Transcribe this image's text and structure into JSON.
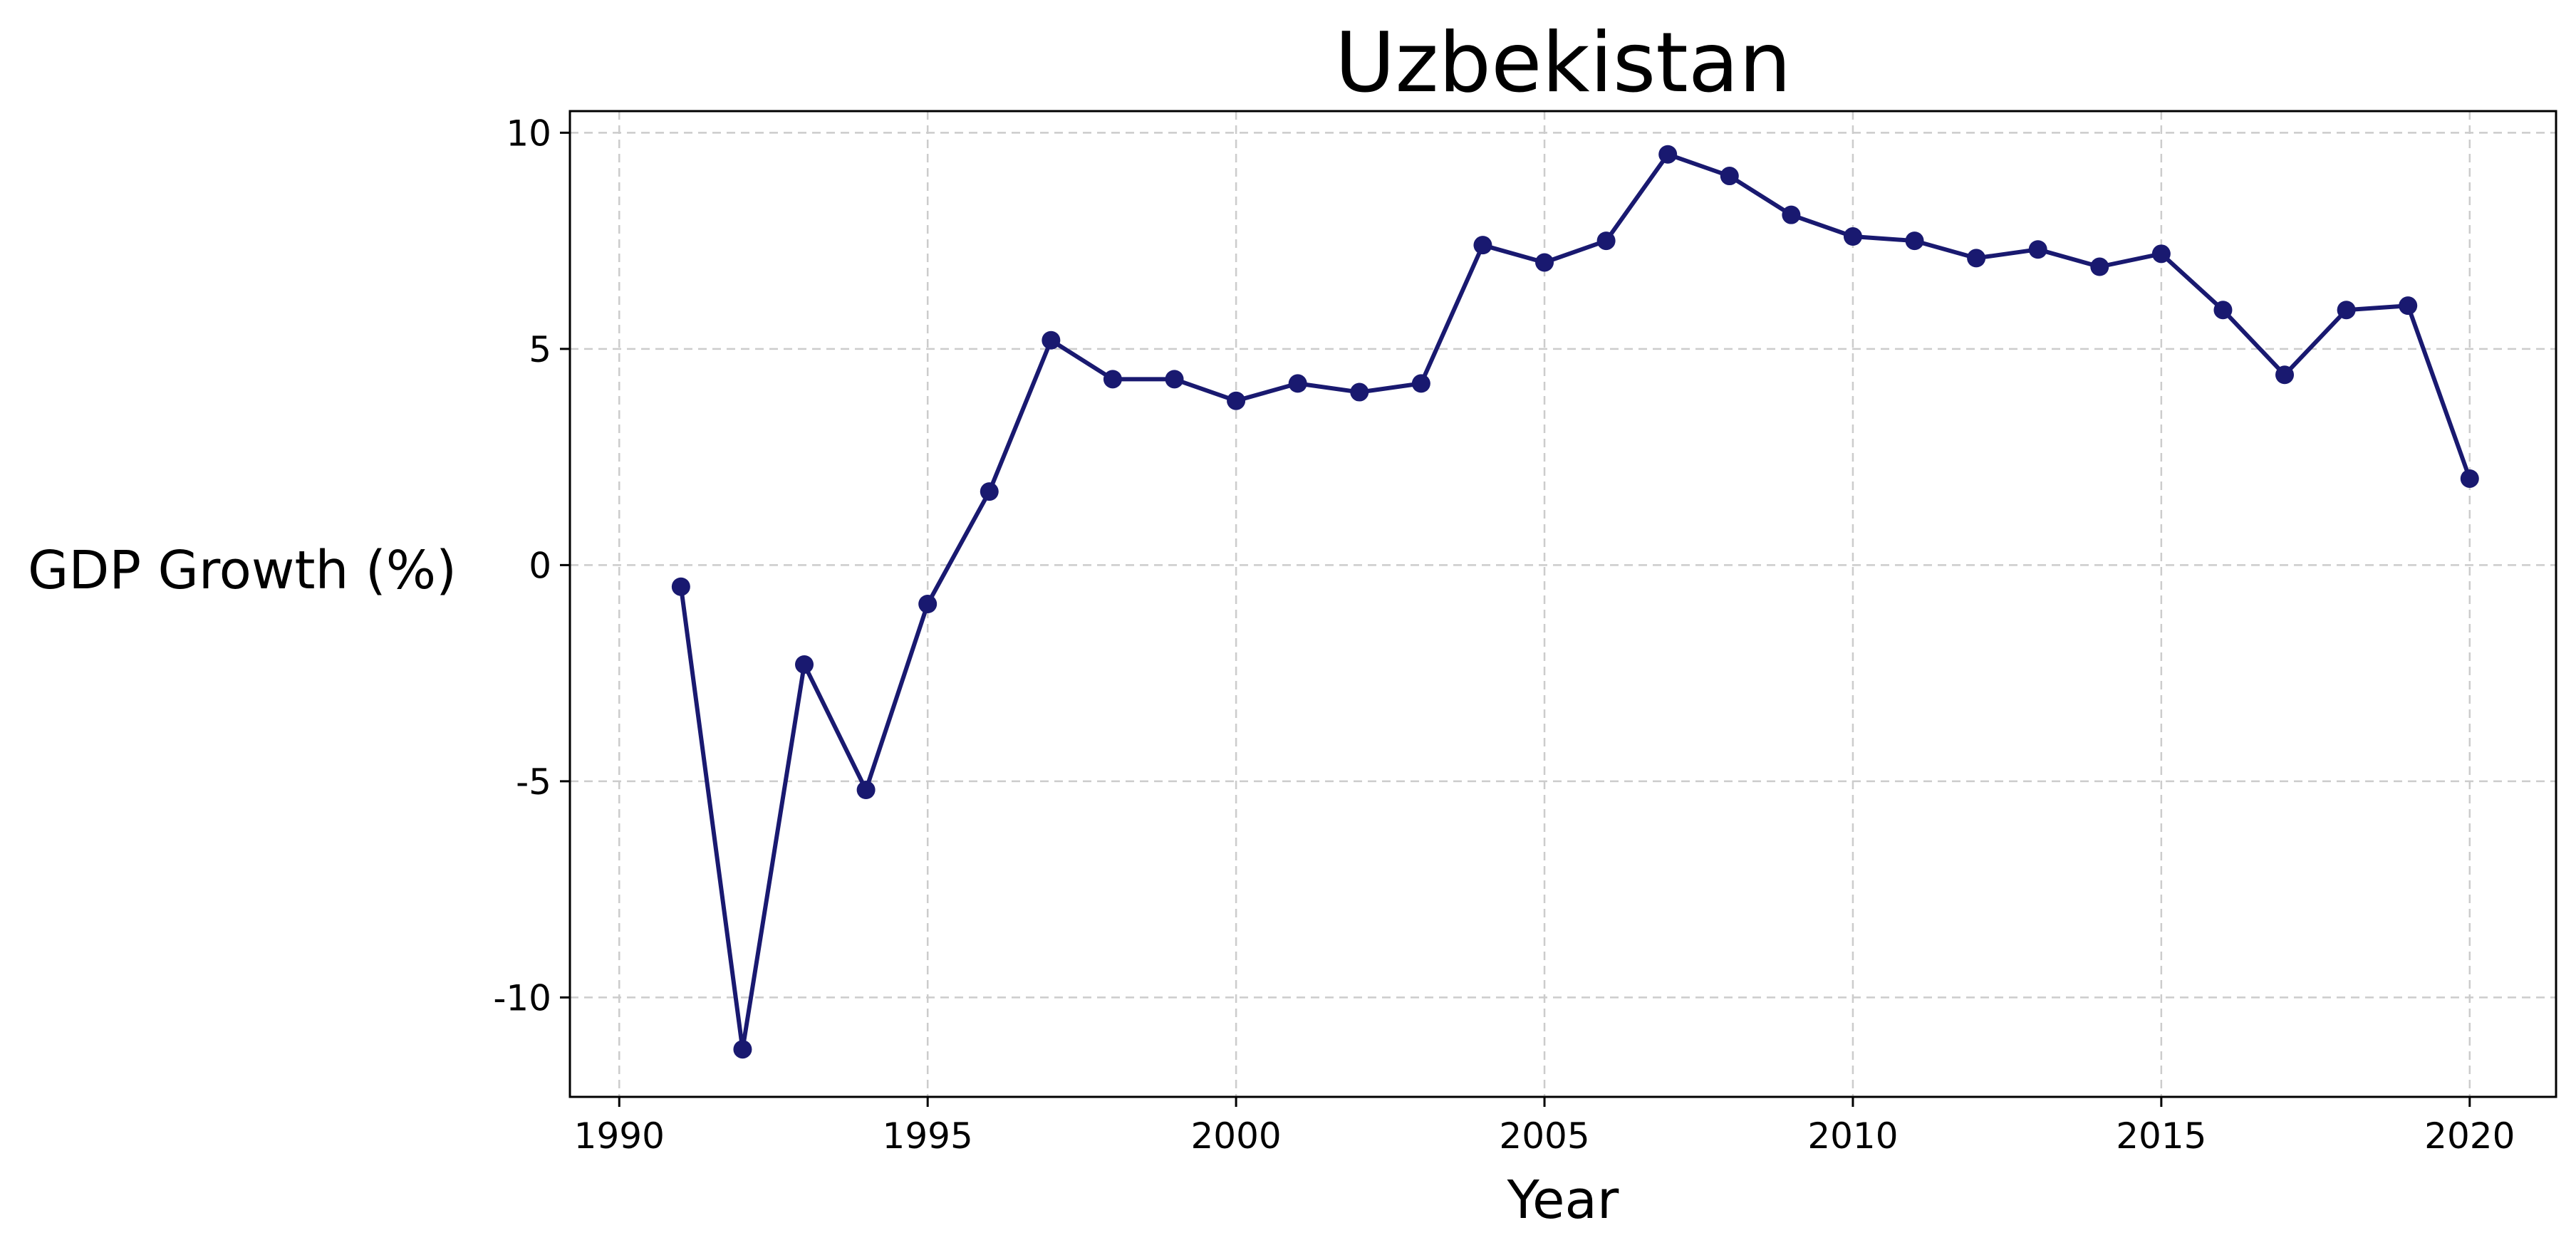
{
  "chart_data": {
    "type": "line",
    "title": "Uzbekistan",
    "xlabel": "Year",
    "ylabel": "GDP Growth (%)",
    "xlim": [
      1989.2,
      2021.4
    ],
    "ylim": [
      -12.3,
      10.5
    ],
    "xticks": [
      1990,
      1995,
      2000,
      2005,
      2010,
      2015,
      2020
    ],
    "yticks": [
      -10,
      -5,
      0,
      5,
      10
    ],
    "ytick_labels": [
      "-10",
      "-5",
      "0",
      "5",
      "10"
    ],
    "grid": true,
    "line_color": "#191970",
    "series": [
      {
        "x": [
          1991,
          1992,
          1993,
          1994,
          1995,
          1996,
          1997,
          1998,
          1999,
          2000,
          2001,
          2002,
          2003,
          2004,
          2005,
          2006,
          2007,
          2008,
          2009,
          2010,
          2011,
          2012,
          2013,
          2014,
          2015,
          2016,
          2017,
          2018,
          2019,
          2020
        ],
        "y": [
          -0.5,
          -11.2,
          -2.3,
          -5.2,
          -0.9,
          1.7,
          5.2,
          4.3,
          4.3,
          3.8,
          4.2,
          4.0,
          4.2,
          7.4,
          7.0,
          7.5,
          9.5,
          9.0,
          8.1,
          7.6,
          7.5,
          7.1,
          7.3,
          6.9,
          7.2,
          5.9,
          4.4,
          5.9,
          6.0,
          2.0
        ]
      }
    ]
  }
}
